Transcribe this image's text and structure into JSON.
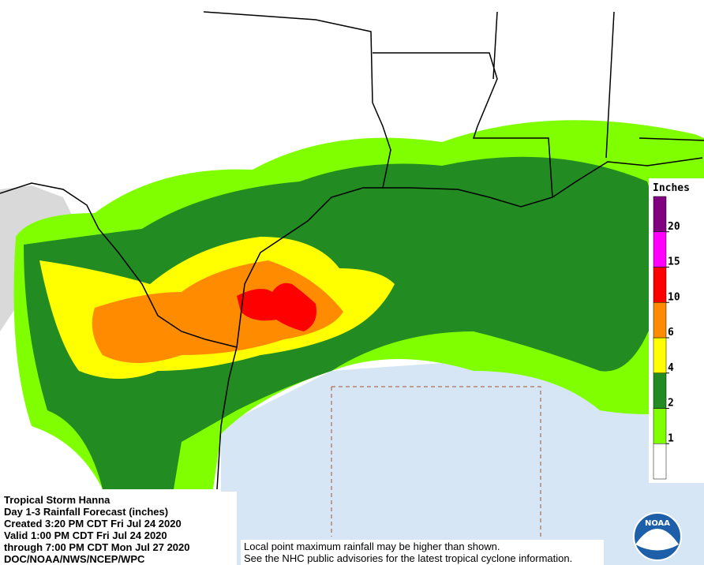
{
  "info": {
    "lines": [
      "Tropical Storm Hanna",
      "Day 1-3 Rainfall Forecast (inches)",
      "Created 3:20 PM CDT Fri Jul 24 2020",
      "Valid 1:00 PM CDT Fri Jul 24 2020",
      "through 7:00 PM CDT Mon Jul 27 2020",
      "DOC/NOAA/NWS/NCEP/WPC"
    ]
  },
  "note": {
    "lines": [
      "Local point maximum rainfall may be higher than shown.",
      "See the NHC public advisories for the latest tropical cyclone information."
    ]
  },
  "legend": {
    "title": "Inches",
    "ticks": [
      1,
      2,
      4,
      6,
      10,
      15,
      20
    ],
    "colors": [
      "#ffffff",
      "#7fff00",
      "#228b22",
      "#ffff00",
      "#ff8c00",
      "#ff0000",
      "#ff00ff",
      "#800080"
    ]
  },
  "logo": {
    "text": "NOAA"
  }
}
